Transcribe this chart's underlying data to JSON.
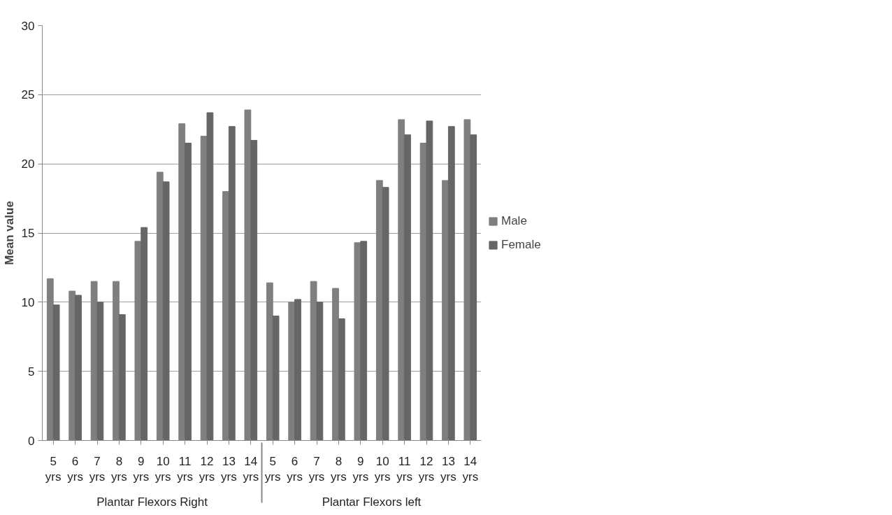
{
  "chart_data": {
    "type": "bar",
    "ylabel": "Mean value",
    "categories": [
      "5 yrs",
      "6 yrs",
      "7 yrs",
      "8 yrs",
      "9 yrs",
      "10 yrs",
      "11 yrs",
      "12 yrs",
      "13 yrs",
      "14 yrs",
      "5 yrs",
      "6 yrs",
      "7 yrs",
      "8 yrs",
      "9 yrs",
      "10 yrs",
      "11 yrs",
      "12 yrs",
      "13 yrs",
      "14 yrs"
    ],
    "series": [
      {
        "name": "Male",
        "color": "#7f7f7f",
        "values": [
          11.7,
          10.8,
          11.5,
          11.5,
          14.4,
          19.4,
          22.9,
          22.0,
          18.0,
          23.9,
          11.4,
          10.0,
          11.5,
          11.0,
          14.3,
          18.8,
          23.2,
          21.5,
          18.8,
          23.2
        ]
      },
      {
        "name": "Female",
        "color": "#666666",
        "values": [
          9.8,
          10.5,
          10.0,
          9.1,
          15.4,
          18.7,
          21.5,
          23.7,
          22.7,
          21.7,
          9.0,
          10.2,
          10.0,
          8.8,
          14.4,
          18.3,
          22.1,
          23.1,
          22.7,
          22.1
        ]
      }
    ],
    "annotations": [
      "Plantar Flexors Right",
      "Plantar Flexors left"
    ],
    "ylim": [
      0,
      30
    ],
    "yticks": [
      0,
      5,
      10,
      15,
      20,
      25,
      30
    ],
    "grid": "y",
    "legend": "right"
  }
}
